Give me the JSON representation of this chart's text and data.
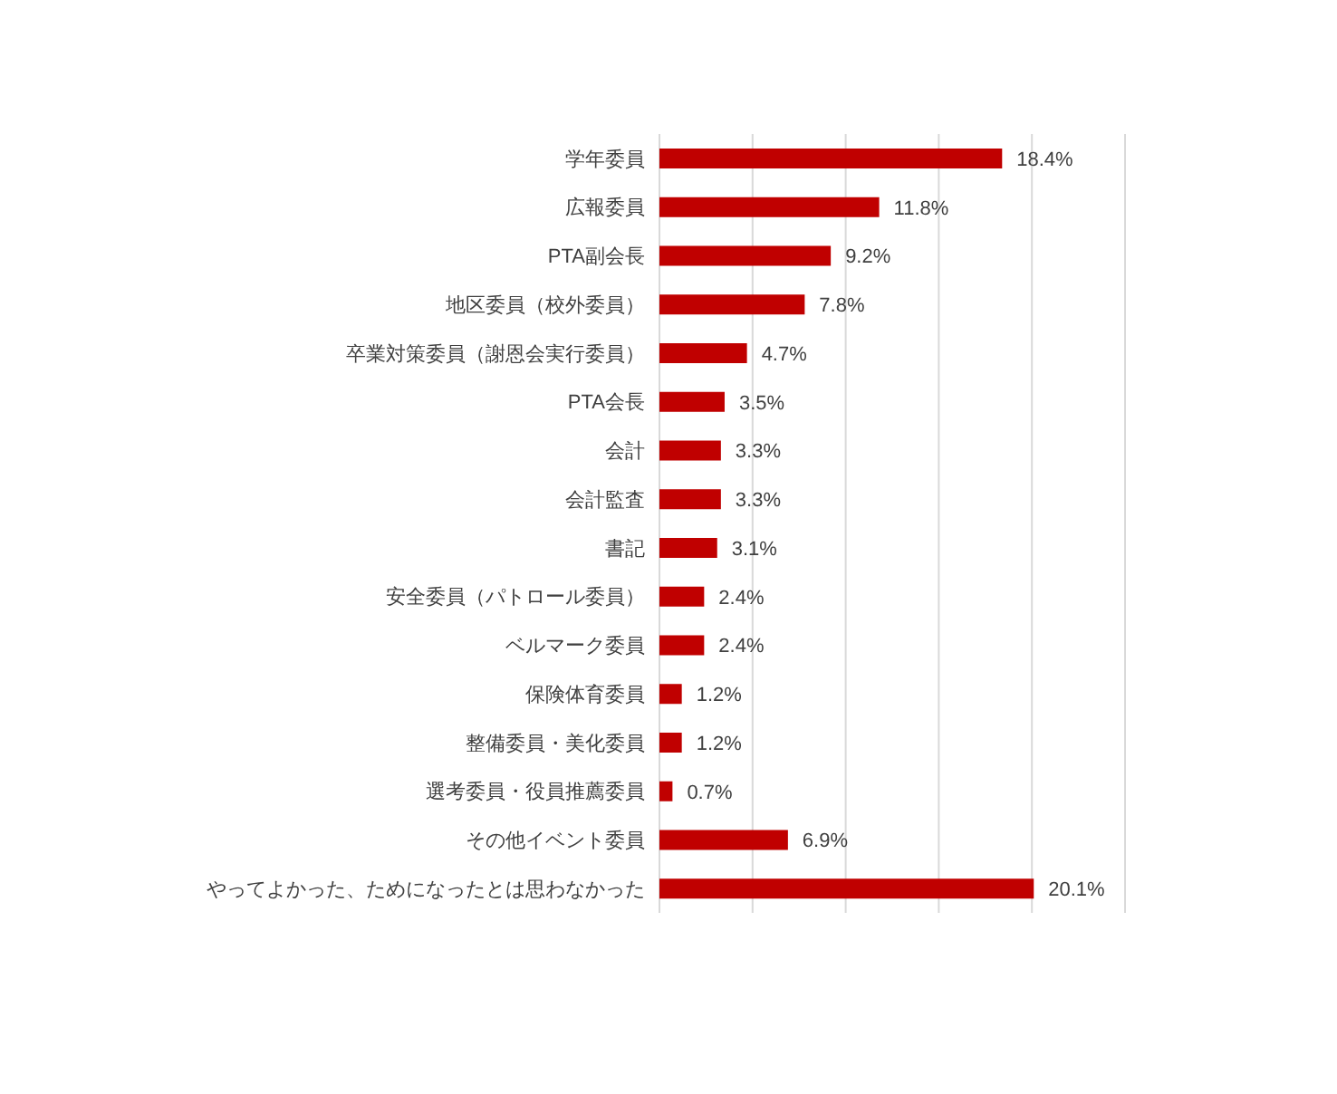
{
  "chart_data": {
    "type": "bar",
    "orientation": "horizontal",
    "categories": [
      "学年委員",
      "広報委員",
      "PTA副会長",
      "地区委員（校外委員）",
      "卒業対策委員（謝恩会実行委員）",
      "PTA会長",
      "会計",
      "会計監査",
      "書記",
      "安全委員（パトロール委員）",
      "ベルマーク委員",
      "保険体育委員",
      "整備委員・美化委員",
      "選考委員・役員推薦委員",
      "その他イベント委員",
      "やってよかった、ためになったとは思わなかった"
    ],
    "values": [
      18.4,
      11.8,
      9.2,
      7.8,
      4.7,
      3.5,
      3.3,
      3.3,
      3.1,
      2.4,
      2.4,
      1.2,
      1.2,
      0.7,
      6.9,
      20.1
    ],
    "value_labels": [
      "18.4%",
      "11.8%",
      "9.2%",
      "7.8%",
      "4.7%",
      "3.5%",
      "3.3%",
      "3.3%",
      "3.1%",
      "2.4%",
      "2.4%",
      "1.2%",
      "1.2%",
      "0.7%",
      "6.9%",
      "20.1%"
    ],
    "color": "#c00000",
    "grid": "x",
    "tick_labels": "y"
  }
}
